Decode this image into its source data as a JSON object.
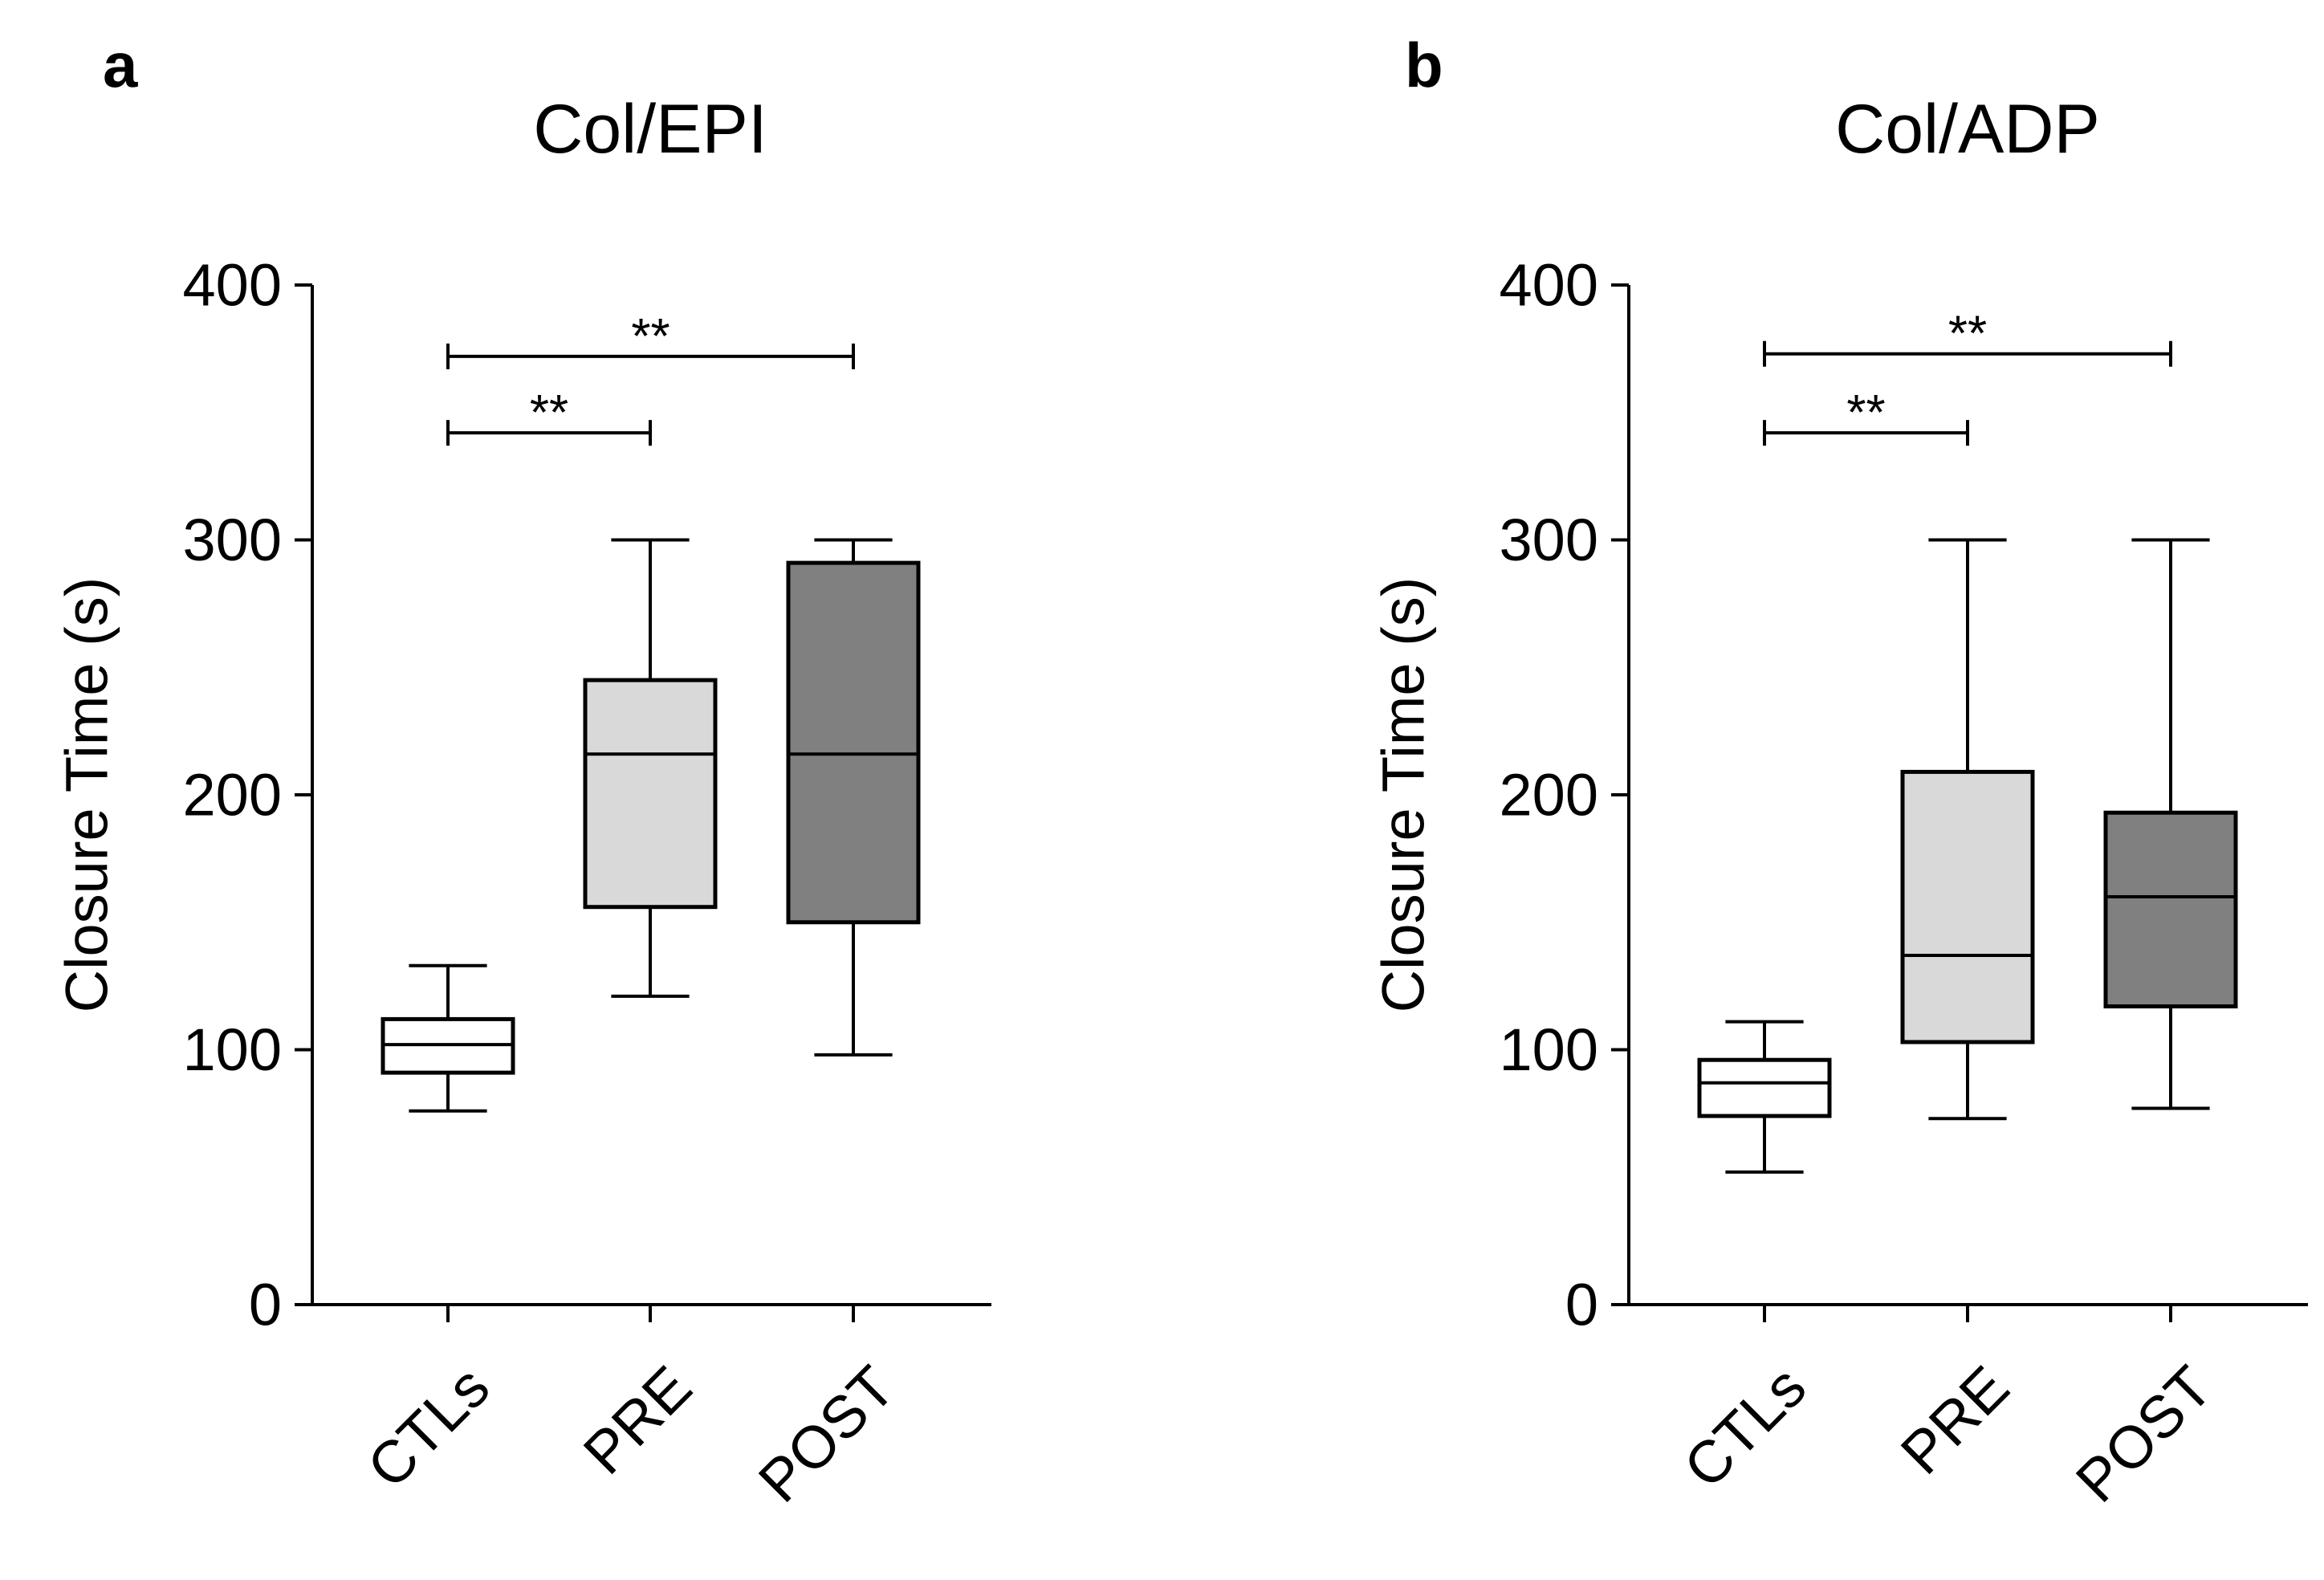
{
  "chart_data": [
    {
      "panel": "a",
      "type": "box",
      "title": "Col/EPI",
      "xlabel": "",
      "ylabel": "Closure Time (s)",
      "ylim": [
        0,
        400
      ],
      "yticks": [
        0,
        100,
        200,
        300,
        400
      ],
      "categories": [
        "CTLs",
        "PRE",
        "POST"
      ],
      "boxes": [
        {
          "category": "CTLs",
          "min": 76,
          "q1": 91,
          "median": 102,
          "q3": 112,
          "max": 133,
          "fill": "#ffffff"
        },
        {
          "category": "PRE",
          "min": 121,
          "q1": 156,
          "median": 216,
          "q3": 245,
          "max": 300,
          "fill": "#d9d9d9"
        },
        {
          "category": "POST",
          "min": 98,
          "q1": 150,
          "median": 216,
          "q3": 291,
          "max": 300,
          "fill": "#808080"
        }
      ],
      "significance": [
        {
          "from": "CTLs",
          "to": "POST",
          "y": 372,
          "label": "**"
        },
        {
          "from": "CTLs",
          "to": "PRE",
          "y": 342,
          "label": "**"
        }
      ]
    },
    {
      "panel": "b",
      "type": "box",
      "title": "Col/ADP",
      "xlabel": "",
      "ylabel": "Closure Time (s)",
      "ylim": [
        0,
        400
      ],
      "yticks": [
        0,
        100,
        200,
        300,
        400
      ],
      "categories": [
        "CTLs",
        "PRE",
        "POST"
      ],
      "boxes": [
        {
          "category": "CTLs",
          "min": 52,
          "q1": 74,
          "median": 87,
          "q3": 96,
          "max": 111,
          "fill": "#ffffff"
        },
        {
          "category": "PRE",
          "min": 73,
          "q1": 103,
          "median": 137,
          "q3": 209,
          "max": 300,
          "fill": "#d9d9d9"
        },
        {
          "category": "POST",
          "min": 77,
          "q1": 117,
          "median": 160,
          "q3": 193,
          "max": 300,
          "fill": "#808080"
        }
      ],
      "significance": [
        {
          "from": "CTLs",
          "to": "POST",
          "y": 373,
          "label": "**"
        },
        {
          "from": "CTLs",
          "to": "PRE",
          "y": 342,
          "label": "**"
        }
      ]
    }
  ]
}
